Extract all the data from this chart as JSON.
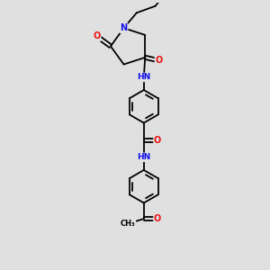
{
  "bg_color": "#e0e0e0",
  "atom_color_N": "#1010ee",
  "atom_color_O": "#ee1010",
  "atom_color_C": "#000000",
  "bond_color": "#000000",
  "bond_width": 1.3,
  "font_size": 6.5,
  "fig_width": 3.0,
  "fig_height": 3.0,
  "dpi": 100,
  "xlim": [
    0,
    10
  ],
  "ylim": [
    0,
    10
  ]
}
